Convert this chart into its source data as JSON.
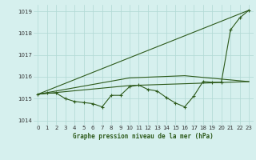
{
  "title": "Graphe pression niveau de la mer (hPa)",
  "xlim": [
    -0.5,
    23.5
  ],
  "ylim": [
    1013.8,
    1019.3
  ],
  "xticks": [
    0,
    1,
    2,
    3,
    4,
    5,
    6,
    7,
    8,
    9,
    10,
    11,
    12,
    13,
    14,
    15,
    16,
    17,
    18,
    19,
    20,
    21,
    22,
    23
  ],
  "yticks": [
    1014,
    1015,
    1016,
    1017,
    1018,
    1019
  ],
  "bg_color": "#d6f0ee",
  "grid_color": "#b0d8d4",
  "line_color": "#2d5a1b",
  "line1_x": [
    0,
    1,
    2,
    3,
    4,
    5,
    6,
    7,
    8,
    9,
    10,
    11,
    12,
    13,
    14,
    15,
    16,
    17,
    18,
    19,
    20,
    21,
    22,
    23
  ],
  "line1_y": [
    1015.2,
    1015.25,
    1015.25,
    1015.0,
    1014.87,
    1014.82,
    1014.77,
    1014.62,
    1015.15,
    1015.15,
    1015.55,
    1015.62,
    1015.42,
    1015.35,
    1015.05,
    1014.8,
    1014.62,
    1015.12,
    1015.78,
    1015.75,
    1015.75,
    1018.15,
    1018.7,
    1019.05
  ],
  "line2_x": [
    0,
    23
  ],
  "line2_y": [
    1015.2,
    1019.05
  ],
  "line3_x": [
    0,
    10,
    16,
    23
  ],
  "line3_y": [
    1015.2,
    1015.95,
    1016.05,
    1015.78
  ],
  "line4_x": [
    0,
    10,
    23
  ],
  "line4_y": [
    1015.2,
    1015.6,
    1015.78
  ]
}
